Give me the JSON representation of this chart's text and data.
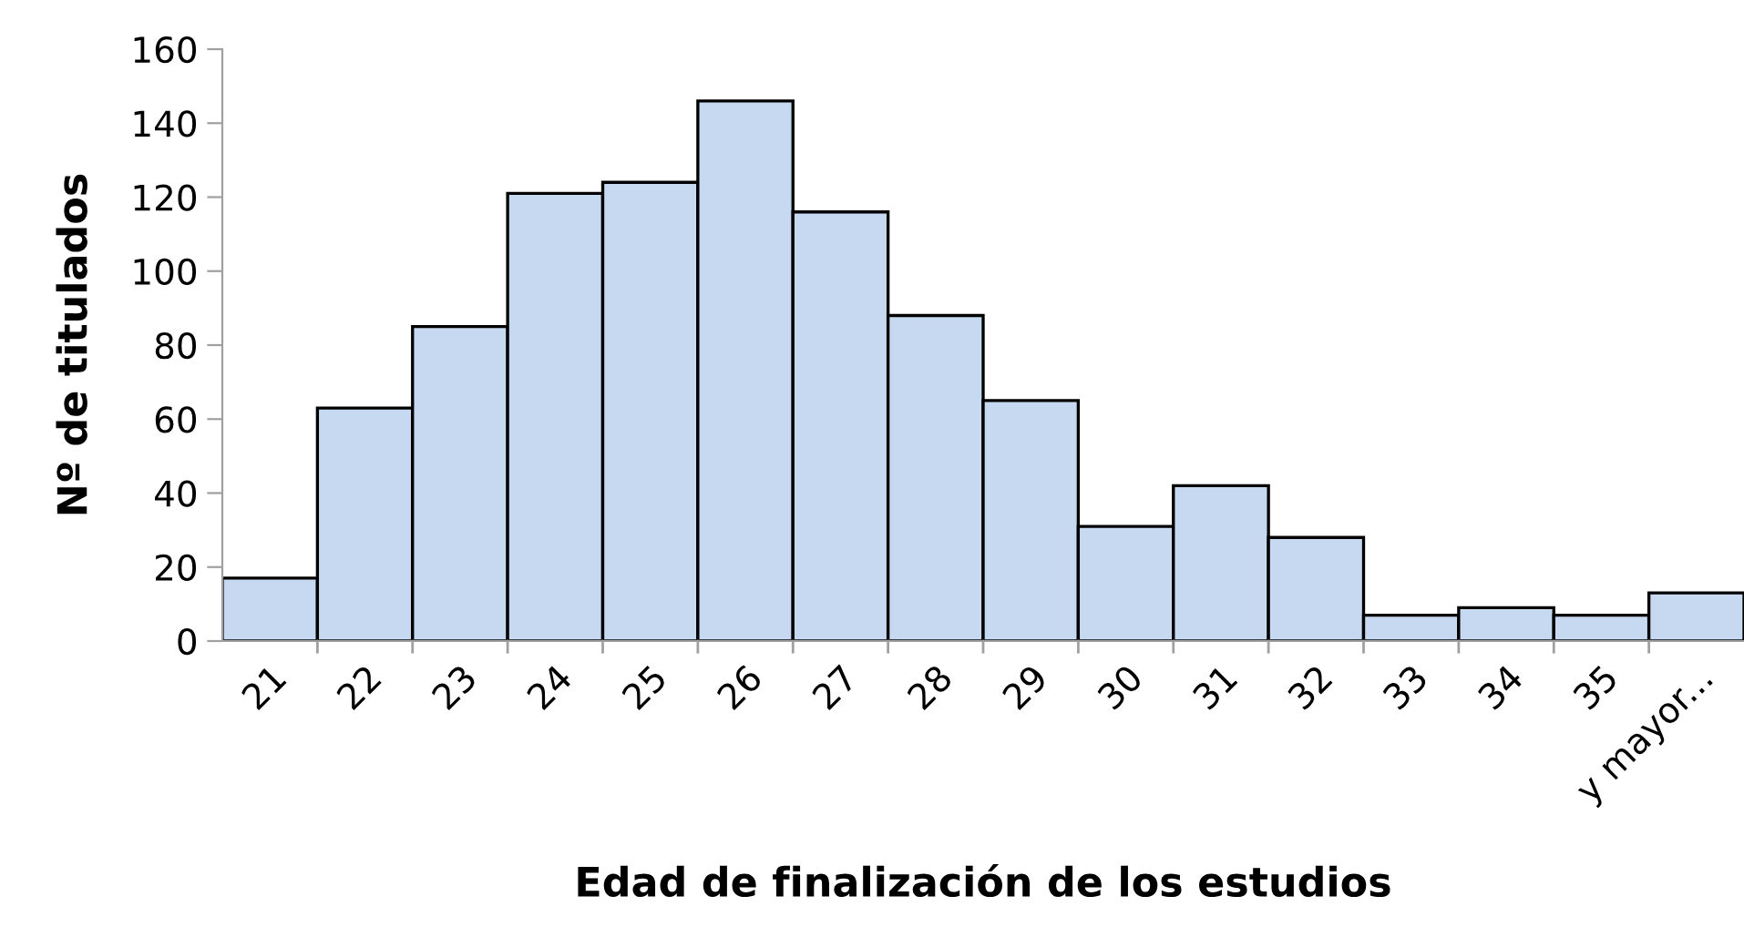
{
  "chart_data": {
    "type": "bar",
    "xlabel": "Edad de finalización de los estudios",
    "ylabel": "Nº de titulados",
    "categories": [
      "21",
      "22",
      "23",
      "24",
      "25",
      "26",
      "27",
      "28",
      "29",
      "30",
      "31",
      "32",
      "33",
      "34",
      "35",
      "y mayor..."
    ],
    "values": [
      17,
      63,
      85,
      121,
      124,
      146,
      116,
      88,
      65,
      31,
      42,
      28,
      7,
      9,
      7,
      13
    ],
    "color": "#c6d9f1",
    "ylim": [
      0,
      160
    ],
    "yticks": [
      0,
      20,
      40,
      60,
      80,
      100,
      120,
      140,
      160
    ],
    "grid": false
  }
}
